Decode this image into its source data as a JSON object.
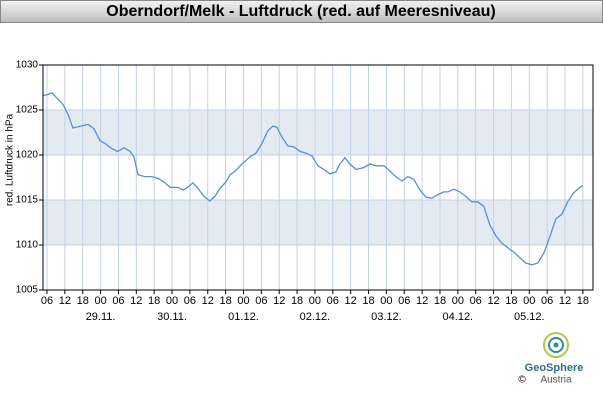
{
  "chart_data": {
    "type": "line",
    "title": "Oberndorf/Melk - Luftdruck (red. auf Meeresniveau)",
    "y_label": "red. Luftdruck in hPa",
    "logo": {
      "name": "GeoSphere",
      "sub": "Austria",
      "copyright": "©"
    },
    "x": [
      4.7,
      6,
      7.7,
      9.4,
      11.4,
      13.1,
      14.7,
      17.1,
      19.8,
      21.8,
      23.8,
      25.8,
      27.8,
      29.8,
      31.9,
      33.9,
      35.2,
      36.6,
      38.9,
      41.3,
      43.3,
      45.3,
      47.3,
      50,
      51.7,
      53.3,
      55,
      56.7,
      58.7,
      60.7,
      62.4,
      64.1,
      66.1,
      67.5,
      69.5,
      71.5,
      74.2,
      76.2,
      78.2,
      80.2,
      81.9,
      83.2,
      84.9,
      86.9,
      88.9,
      91,
      93,
      95,
      97,
      99.4,
      101,
      103,
      104.4,
      106.1,
      107.7,
      109.8,
      112.4,
      114.5,
      116.5,
      119.2,
      121.2,
      123.2,
      125.2,
      127.2,
      129.2,
      131.3,
      133.3,
      135.3,
      137.3,
      139.3,
      140.7,
      142.7,
      144.7,
      146.7,
      148.7,
      150.7,
      152.7,
      154.8,
      156.8,
      158.8,
      160.8,
      162.8,
      164.8,
      166.8,
      168.9,
      170.9,
      172.9,
      174.9,
      176.9,
      178.9,
      180.9,
      182.9,
      185,
      186
    ],
    "series": [
      {
        "name": "Luftdruck",
        "color": "#5b8ed6",
        "values": [
          1026.6,
          1026.7,
          1026.9,
          1026.3,
          1025.6,
          1024.5,
          1023,
          1023.2,
          1023.4,
          1022.9,
          1021.6,
          1021.2,
          1020.7,
          1020.4,
          1020.8,
          1020.4,
          1019.8,
          1017.8,
          1017.6,
          1017.6,
          1017.4,
          1017,
          1016.4,
          1016.4,
          1016.1,
          1016.4,
          1016.9,
          1016.3,
          1015.4,
          1014.9,
          1015.4,
          1016.3,
          1017,
          1017.8,
          1018.3,
          1019,
          1019.8,
          1020.2,
          1021.3,
          1022.7,
          1023.2,
          1023.1,
          1022,
          1021,
          1020.9,
          1020.4,
          1020.2,
          1019.9,
          1018.8,
          1018.3,
          1017.9,
          1018.1,
          1019,
          1019.7,
          1019,
          1018.4,
          1018.6,
          1019,
          1018.8,
          1018.8,
          1018.2,
          1017.6,
          1017.1,
          1017.6,
          1017.3,
          1016.1,
          1015.3,
          1015.2,
          1015.6,
          1015.9,
          1015.9,
          1016.2,
          1015.9,
          1015.4,
          1014.8,
          1014.8,
          1014.3,
          1012.2,
          1011,
          1010.2,
          1009.7,
          1009.2,
          1008.6,
          1008,
          1007.8,
          1008,
          1009.1,
          1010.9,
          1012.9,
          1013.4,
          1014.8,
          1015.8,
          1016.4,
          1016.6
        ]
      }
    ],
    "xlim": [
      4.66,
      189.4
    ],
    "ylim": [
      1005,
      1030
    ],
    "yticks": [
      1005,
      1010,
      1015,
      1020,
      1025,
      1030
    ],
    "xticks": [
      {
        "value": 6,
        "label": "06"
      },
      {
        "value": 12,
        "label": "12"
      },
      {
        "value": 18,
        "label": "18"
      },
      {
        "value": 24,
        "label": "00"
      },
      {
        "value": 30,
        "label": "06"
      },
      {
        "value": 36,
        "label": "12"
      },
      {
        "value": 42,
        "label": "18"
      },
      {
        "value": 48,
        "label": "00"
      },
      {
        "value": 54,
        "label": "06"
      },
      {
        "value": 60,
        "label": "12"
      },
      {
        "value": 66,
        "label": "18"
      },
      {
        "value": 72,
        "label": "00"
      },
      {
        "value": 78,
        "label": "06"
      },
      {
        "value": 84,
        "label": "12"
      },
      {
        "value": 90,
        "label": "18"
      },
      {
        "value": 96,
        "label": "00"
      },
      {
        "value": 102,
        "label": "06"
      },
      {
        "value": 108,
        "label": "12"
      },
      {
        "value": 114,
        "label": "18"
      },
      {
        "value": 120,
        "label": "00"
      },
      {
        "value": 126,
        "label": "06"
      },
      {
        "value": 132,
        "label": "12"
      },
      {
        "value": 138,
        "label": "18"
      },
      {
        "value": 144,
        "label": "00"
      },
      {
        "value": 150,
        "label": "06"
      },
      {
        "value": 156,
        "label": "12"
      },
      {
        "value": 162,
        "label": "18"
      },
      {
        "value": 168,
        "label": "00"
      },
      {
        "value": 174,
        "label": "06"
      },
      {
        "value": 180,
        "label": "12"
      },
      {
        "value": 186,
        "label": "18"
      }
    ],
    "date_labels": [
      {
        "value": 24,
        "label": "29.11."
      },
      {
        "value": 48,
        "label": "30.11."
      },
      {
        "value": 72,
        "label": "01.12."
      },
      {
        "value": 96,
        "label": "02.12."
      },
      {
        "value": 120,
        "label": "03.12."
      },
      {
        "value": 144,
        "label": "04.12."
      },
      {
        "value": 168,
        "label": "05.12."
      }
    ],
    "grid": true,
    "grid_color": "#c3d2e6",
    "band_color": "#e4eaf2",
    "alternate_bands": true
  }
}
